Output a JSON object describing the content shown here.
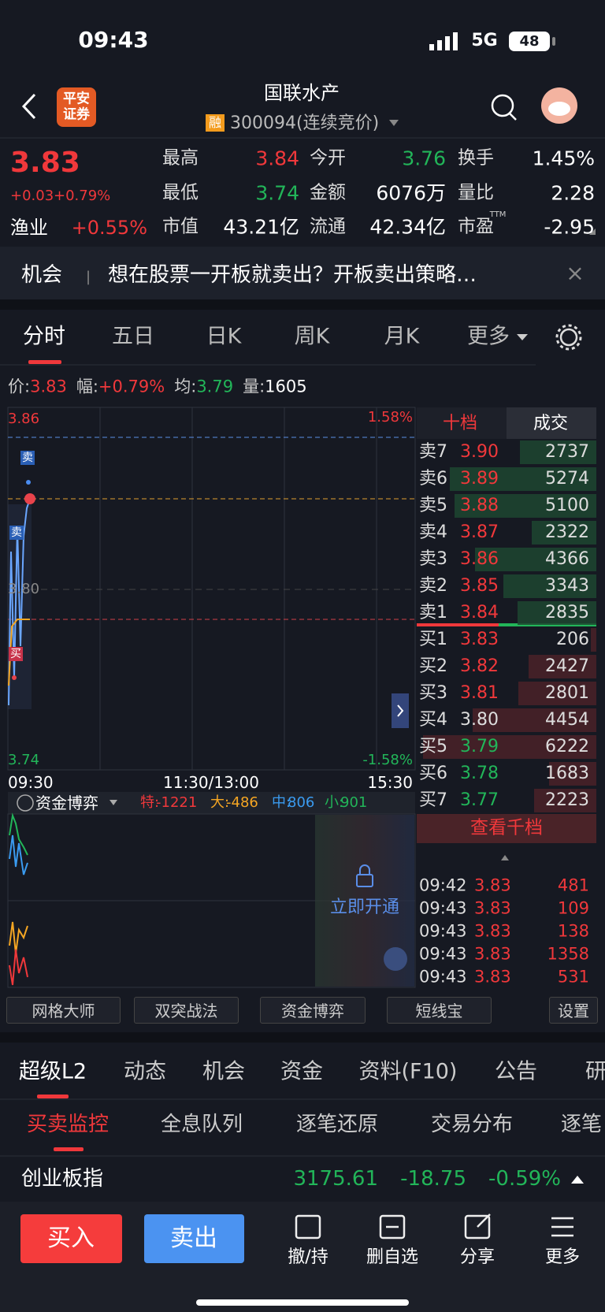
{
  "status_bar": {
    "time": "09:43",
    "network": "5G",
    "battery": "48"
  },
  "header": {
    "logo": [
      "平安",
      "证券"
    ],
    "title": "国联水产",
    "badge": "融",
    "code": "300094(连续竞价)"
  },
  "quote": {
    "price": "3.83",
    "change": "+0.03",
    "change_pct": "+0.79%",
    "sector": "渔业",
    "sector_change": "+0.55%",
    "ttm": "TTM",
    "fields": [
      {
        "label": "最高",
        "value": "3.84",
        "color": "#f0383b"
      },
      {
        "label": "今开",
        "value": "3.76",
        "color": "#22b559"
      },
      {
        "label": "换手",
        "value": "1.45%",
        "color": "#ffffff"
      },
      {
        "label": "最低",
        "value": "3.74",
        "color": "#22b559"
      },
      {
        "label": "金额",
        "value": "6076万",
        "color": "#ffffff"
      },
      {
        "label": "量比",
        "value": "2.28",
        "color": "#ffffff"
      },
      {
        "label": "市值",
        "value": "43.21亿",
        "color": "#ffffff"
      },
      {
        "label": "流通",
        "value": "42.34亿",
        "color": "#ffffff"
      },
      {
        "label": "市盈",
        "value": "-2.95",
        "color": "#ffffff"
      }
    ]
  },
  "banner": {
    "tag": "机会",
    "text": "想在股票一开板就卖出？开板卖出策略…"
  },
  "chart_tabs": [
    "分时",
    "五日",
    "日K",
    "周K",
    "月K",
    "更多"
  ],
  "info": [
    {
      "label": "价:",
      "value": "3.83",
      "color": "#f0383b"
    },
    {
      "label": "幅:",
      "value": "+0.79%",
      "color": "#f0383b"
    },
    {
      "label": "均:",
      "value": "3.79",
      "color": "#22b559"
    },
    {
      "label": "量:",
      "value": "1605",
      "color": "#ffffff"
    }
  ],
  "chart": {
    "top_price": "3.86",
    "top_pct": "1.58%",
    "mid_price": "3.80",
    "bottom_price": "3.74",
    "bottom_pct": "-1.58%",
    "times": [
      "09:30",
      "11:30/13:00",
      "15:30"
    ],
    "markers": [
      "卖",
      "卖",
      "买"
    ]
  },
  "order_book": {
    "tabs": [
      "十档",
      "成交"
    ],
    "asks": [
      {
        "label": "卖7",
        "price": "3.90",
        "volume": "2737"
      },
      {
        "label": "卖6",
        "price": "3.89",
        "volume": "5274"
      },
      {
        "label": "卖5",
        "price": "3.88",
        "volume": "5100"
      },
      {
        "label": "卖4",
        "price": "3.87",
        "volume": "2322"
      },
      {
        "label": "卖3",
        "price": "3.86",
        "volume": "4366"
      },
      {
        "label": "卖2",
        "price": "3.85",
        "volume": "3343"
      },
      {
        "label": "卖1",
        "price": "3.84",
        "volume": "2835"
      }
    ],
    "bids": [
      {
        "label": "买1",
        "price": "3.83",
        "volume": "206"
      },
      {
        "label": "买2",
        "price": "3.82",
        "volume": "2427"
      },
      {
        "label": "买3",
        "price": "3.81",
        "volume": "2801"
      },
      {
        "label": "买4",
        "price": "3.80",
        "volume": "4454"
      },
      {
        "label": "买5",
        "price": "3.79",
        "volume": "6222"
      },
      {
        "label": "买6",
        "price": "3.78",
        "volume": "1683"
      },
      {
        "label": "买7",
        "price": "3.77",
        "volume": "2223"
      }
    ],
    "more": "查看千档"
  },
  "trades": [
    {
      "time": "09:42",
      "price": "3.83",
      "volume": "481"
    },
    {
      "time": "09:43",
      "price": "3.83",
      "volume": "109"
    },
    {
      "time": "09:43",
      "price": "3.83",
      "volume": "138"
    },
    {
      "time": "09:43",
      "price": "3.83",
      "volume": "1358"
    },
    {
      "time": "09:43",
      "price": "3.83",
      "volume": "531"
    }
  ],
  "fund": {
    "title": "资金博弈",
    "items": [
      {
        "label": "特:",
        "value": "-1221",
        "color": "#f0383b"
      },
      {
        "label": "大:",
        "value": "-486",
        "color": "#f5a623"
      },
      {
        "label": "中:",
        "value": "806",
        "color": "#3a9bf0"
      },
      {
        "label": "小:",
        "value": "901",
        "color": "#22b559"
      }
    ],
    "unlock": "立即开通"
  },
  "tools": [
    "网格大师",
    "双突战法",
    "资金博弈",
    "短线宝",
    "设置"
  ],
  "detail_tabs": [
    "超级L2",
    "动态",
    "机会",
    "资金",
    "资料(F10)",
    "公告",
    "研报"
  ],
  "sub_tabs": [
    "买卖监控",
    "全息队列",
    "逐笔还原",
    "交易分布",
    "逐笔"
  ],
  "index": {
    "name": "创业板指",
    "value": "3175.61",
    "change": "-18.75",
    "change_pct": "-0.59%"
  },
  "bottom_bar": {
    "buy": "买入",
    "sell": "卖出",
    "actions": [
      "撤/持",
      "删自选",
      "分享",
      "更多"
    ]
  }
}
